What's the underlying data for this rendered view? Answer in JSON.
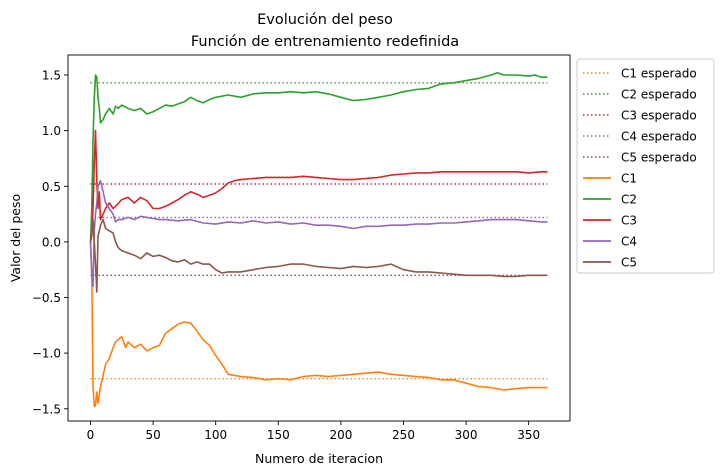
{
  "chart_data": {
    "type": "line",
    "title_line1": "Evolución del peso",
    "title_line2": "Función de entrenamiento redefinida",
    "xlabel": "Numero de iteracion",
    "ylabel": "Valor del peso",
    "xlim": [
      -18,
      383
    ],
    "ylim": [
      -1.61,
      1.68
    ],
    "x_ticks": [
      0,
      50,
      100,
      150,
      200,
      250,
      300,
      350
    ],
    "y_ticks": [
      -1.5,
      -1.0,
      -0.5,
      0.0,
      0.5,
      1.0,
      1.5
    ],
    "y_tick_labels": [
      "−1.5",
      "−1.0",
      "−0.5",
      "0.0",
      "0.5",
      "1.0",
      "1.5"
    ],
    "grid": false,
    "legend_position": "outside-right",
    "expected": [
      {
        "name": "C1 esperado",
        "value": -1.23,
        "x_range": [
          0,
          365
        ],
        "color": "#ff7f0e"
      },
      {
        "name": "C2 esperado",
        "value": 1.43,
        "x_range": [
          0,
          365
        ],
        "color": "#2ca02c"
      },
      {
        "name": "C3 esperado",
        "value": 0.52,
        "x_range": [
          0,
          365
        ],
        "color": "#d62728"
      },
      {
        "name": "C4 esperado",
        "value": 0.22,
        "x_range": [
          0,
          365
        ],
        "color": "#9467bd"
      },
      {
        "name": "C5 esperado",
        "value": -0.3,
        "x_range": [
          0,
          365
        ],
        "color": "#8c564b"
      }
    ],
    "series": [
      {
        "name": "C1",
        "color": "#ff7f0e",
        "points": [
          [
            0,
            0
          ],
          [
            1,
            -0.3
          ],
          [
            2,
            -1.3
          ],
          [
            3,
            -1.48
          ],
          [
            4,
            -1.47
          ],
          [
            5,
            -1.35
          ],
          [
            6,
            -1.45
          ],
          [
            8,
            -1.3
          ],
          [
            10,
            -1.2
          ],
          [
            12,
            -1.1
          ],
          [
            15,
            -1.05
          ],
          [
            18,
            -0.95
          ],
          [
            20,
            -0.9
          ],
          [
            22,
            -0.88
          ],
          [
            25,
            -0.85
          ],
          [
            28,
            -0.95
          ],
          [
            30,
            -0.9
          ],
          [
            35,
            -0.95
          ],
          [
            40,
            -0.92
          ],
          [
            45,
            -0.98
          ],
          [
            50,
            -0.95
          ],
          [
            55,
            -0.93
          ],
          [
            60,
            -0.82
          ],
          [
            65,
            -0.78
          ],
          [
            70,
            -0.74
          ],
          [
            75,
            -0.72
          ],
          [
            80,
            -0.73
          ],
          [
            85,
            -0.8
          ],
          [
            90,
            -0.88
          ],
          [
            95,
            -0.93
          ],
          [
            100,
            -1.02
          ],
          [
            105,
            -1.1
          ],
          [
            110,
            -1.19
          ],
          [
            115,
            -1.2
          ],
          [
            120,
            -1.21
          ],
          [
            130,
            -1.22
          ],
          [
            140,
            -1.24
          ],
          [
            150,
            -1.23
          ],
          [
            160,
            -1.24
          ],
          [
            170,
            -1.21
          ],
          [
            180,
            -1.2
          ],
          [
            190,
            -1.21
          ],
          [
            200,
            -1.2
          ],
          [
            210,
            -1.19
          ],
          [
            220,
            -1.18
          ],
          [
            230,
            -1.17
          ],
          [
            240,
            -1.19
          ],
          [
            250,
            -1.2
          ],
          [
            260,
            -1.21
          ],
          [
            270,
            -1.22
          ],
          [
            280,
            -1.24
          ],
          [
            290,
            -1.24
          ],
          [
            300,
            -1.27
          ],
          [
            310,
            -1.3
          ],
          [
            320,
            -1.31
          ],
          [
            330,
            -1.33
          ],
          [
            340,
            -1.32
          ],
          [
            350,
            -1.31
          ],
          [
            360,
            -1.31
          ],
          [
            365,
            -1.31
          ]
        ]
      },
      {
        "name": "C2",
        "color": "#2ca02c",
        "points": [
          [
            0,
            0
          ],
          [
            1,
            0.3
          ],
          [
            2,
            0.9
          ],
          [
            3,
            1.3
          ],
          [
            4,
            1.5
          ],
          [
            5,
            1.48
          ],
          [
            6,
            1.3
          ],
          [
            7,
            1.2
          ],
          [
            8,
            1.07
          ],
          [
            10,
            1.1
          ],
          [
            12,
            1.15
          ],
          [
            15,
            1.2
          ],
          [
            18,
            1.15
          ],
          [
            20,
            1.22
          ],
          [
            22,
            1.2
          ],
          [
            25,
            1.23
          ],
          [
            30,
            1.2
          ],
          [
            35,
            1.18
          ],
          [
            40,
            1.2
          ],
          [
            45,
            1.15
          ],
          [
            50,
            1.17
          ],
          [
            55,
            1.2
          ],
          [
            60,
            1.23
          ],
          [
            65,
            1.22
          ],
          [
            70,
            1.24
          ],
          [
            75,
            1.26
          ],
          [
            80,
            1.3
          ],
          [
            85,
            1.27
          ],
          [
            90,
            1.25
          ],
          [
            95,
            1.28
          ],
          [
            100,
            1.3
          ],
          [
            110,
            1.32
          ],
          [
            120,
            1.3
          ],
          [
            130,
            1.33
          ],
          [
            140,
            1.34
          ],
          [
            150,
            1.34
          ],
          [
            160,
            1.35
          ],
          [
            170,
            1.34
          ],
          [
            180,
            1.35
          ],
          [
            190,
            1.33
          ],
          [
            200,
            1.3
          ],
          [
            210,
            1.27
          ],
          [
            220,
            1.28
          ],
          [
            230,
            1.3
          ],
          [
            240,
            1.32
          ],
          [
            250,
            1.35
          ],
          [
            260,
            1.37
          ],
          [
            270,
            1.38
          ],
          [
            280,
            1.42
          ],
          [
            290,
            1.43
          ],
          [
            300,
            1.45
          ],
          [
            310,
            1.47
          ],
          [
            320,
            1.5
          ],
          [
            325,
            1.52
          ],
          [
            330,
            1.5
          ],
          [
            340,
            1.5
          ],
          [
            350,
            1.49
          ],
          [
            355,
            1.5
          ],
          [
            360,
            1.48
          ],
          [
            365,
            1.48
          ]
        ]
      },
      {
        "name": "C3",
        "color": "#d62728",
        "points": [
          [
            0,
            0
          ],
          [
            1,
            0.05
          ],
          [
            2,
            0.3
          ],
          [
            3,
            0.7
          ],
          [
            4,
            1.0
          ],
          [
            5,
            0.55
          ],
          [
            6,
            0.3
          ],
          [
            7,
            0.45
          ],
          [
            8,
            0.2
          ],
          [
            10,
            0.25
          ],
          [
            12,
            0.3
          ],
          [
            15,
            0.35
          ],
          [
            18,
            0.3
          ],
          [
            20,
            0.32
          ],
          [
            25,
            0.38
          ],
          [
            30,
            0.4
          ],
          [
            35,
            0.35
          ],
          [
            40,
            0.4
          ],
          [
            45,
            0.37
          ],
          [
            50,
            0.3
          ],
          [
            55,
            0.3
          ],
          [
            60,
            0.32
          ],
          [
            65,
            0.35
          ],
          [
            70,
            0.38
          ],
          [
            75,
            0.42
          ],
          [
            80,
            0.45
          ],
          [
            85,
            0.43
          ],
          [
            90,
            0.4
          ],
          [
            95,
            0.42
          ],
          [
            100,
            0.44
          ],
          [
            105,
            0.48
          ],
          [
            110,
            0.53
          ],
          [
            115,
            0.55
          ],
          [
            120,
            0.56
          ],
          [
            130,
            0.57
          ],
          [
            140,
            0.58
          ],
          [
            150,
            0.58
          ],
          [
            160,
            0.58
          ],
          [
            170,
            0.59
          ],
          [
            180,
            0.58
          ],
          [
            190,
            0.57
          ],
          [
            200,
            0.56
          ],
          [
            210,
            0.56
          ],
          [
            220,
            0.57
          ],
          [
            230,
            0.58
          ],
          [
            240,
            0.6
          ],
          [
            250,
            0.61
          ],
          [
            260,
            0.62
          ],
          [
            270,
            0.62
          ],
          [
            280,
            0.63
          ],
          [
            290,
            0.63
          ],
          [
            300,
            0.63
          ],
          [
            310,
            0.63
          ],
          [
            320,
            0.63
          ],
          [
            330,
            0.63
          ],
          [
            340,
            0.63
          ],
          [
            350,
            0.62
          ],
          [
            360,
            0.63
          ],
          [
            365,
            0.63
          ]
        ]
      },
      {
        "name": "C4",
        "color": "#9467bd",
        "points": [
          [
            0,
            0
          ],
          [
            1,
            -0.3
          ],
          [
            2,
            -0.4
          ],
          [
            3,
            0.1
          ],
          [
            4,
            0.25
          ],
          [
            5,
            0.35
          ],
          [
            6,
            0.5
          ],
          [
            8,
            0.55
          ],
          [
            10,
            0.45
          ],
          [
            12,
            0.35
          ],
          [
            15,
            0.3
          ],
          [
            18,
            0.25
          ],
          [
            20,
            0.18
          ],
          [
            22,
            0.2
          ],
          [
            25,
            0.2
          ],
          [
            30,
            0.22
          ],
          [
            35,
            0.2
          ],
          [
            40,
            0.23
          ],
          [
            45,
            0.22
          ],
          [
            50,
            0.21
          ],
          [
            55,
            0.2
          ],
          [
            60,
            0.2
          ],
          [
            70,
            0.19
          ],
          [
            80,
            0.2
          ],
          [
            90,
            0.17
          ],
          [
            100,
            0.16
          ],
          [
            110,
            0.18
          ],
          [
            120,
            0.17
          ],
          [
            130,
            0.19
          ],
          [
            140,
            0.17
          ],
          [
            150,
            0.18
          ],
          [
            160,
            0.16
          ],
          [
            170,
            0.17
          ],
          [
            180,
            0.15
          ],
          [
            190,
            0.15
          ],
          [
            200,
            0.14
          ],
          [
            210,
            0.12
          ],
          [
            220,
            0.14
          ],
          [
            230,
            0.14
          ],
          [
            240,
            0.15
          ],
          [
            250,
            0.15
          ],
          [
            260,
            0.16
          ],
          [
            270,
            0.16
          ],
          [
            280,
            0.17
          ],
          [
            290,
            0.17
          ],
          [
            300,
            0.18
          ],
          [
            310,
            0.19
          ],
          [
            320,
            0.2
          ],
          [
            330,
            0.2
          ],
          [
            340,
            0.2
          ],
          [
            350,
            0.19
          ],
          [
            360,
            0.18
          ],
          [
            365,
            0.18
          ]
        ]
      },
      {
        "name": "C5",
        "color": "#8c564b",
        "points": [
          [
            0,
            0
          ],
          [
            1,
            0.1
          ],
          [
            2,
            0.2
          ],
          [
            3,
            0.0
          ],
          [
            4,
            -0.2
          ],
          [
            5,
            -0.45
          ],
          [
            6,
            0.05
          ],
          [
            8,
            0.15
          ],
          [
            10,
            0.2
          ],
          [
            12,
            0.12
          ],
          [
            15,
            0.1
          ],
          [
            18,
            0.08
          ],
          [
            20,
            0.0
          ],
          [
            22,
            -0.05
          ],
          [
            25,
            -0.08
          ],
          [
            30,
            -0.1
          ],
          [
            35,
            -0.12
          ],
          [
            40,
            -0.15
          ],
          [
            45,
            -0.1
          ],
          [
            50,
            -0.13
          ],
          [
            55,
            -0.12
          ],
          [
            60,
            -0.14
          ],
          [
            65,
            -0.17
          ],
          [
            70,
            -0.18
          ],
          [
            75,
            -0.16
          ],
          [
            80,
            -0.2
          ],
          [
            85,
            -0.18
          ],
          [
            90,
            -0.2
          ],
          [
            95,
            -0.2
          ],
          [
            100,
            -0.25
          ],
          [
            105,
            -0.28
          ],
          [
            110,
            -0.27
          ],
          [
            120,
            -0.27
          ],
          [
            130,
            -0.25
          ],
          [
            140,
            -0.23
          ],
          [
            150,
            -0.22
          ],
          [
            160,
            -0.2
          ],
          [
            170,
            -0.2
          ],
          [
            180,
            -0.22
          ],
          [
            190,
            -0.23
          ],
          [
            200,
            -0.24
          ],
          [
            210,
            -0.22
          ],
          [
            220,
            -0.23
          ],
          [
            230,
            -0.22
          ],
          [
            240,
            -0.2
          ],
          [
            250,
            -0.25
          ],
          [
            260,
            -0.27
          ],
          [
            270,
            -0.27
          ],
          [
            280,
            -0.28
          ],
          [
            290,
            -0.29
          ],
          [
            300,
            -0.3
          ],
          [
            310,
            -0.3
          ],
          [
            320,
            -0.3
          ],
          [
            330,
            -0.31
          ],
          [
            340,
            -0.31
          ],
          [
            350,
            -0.3
          ],
          [
            360,
            -0.3
          ],
          [
            365,
            -0.3
          ]
        ]
      }
    ]
  }
}
